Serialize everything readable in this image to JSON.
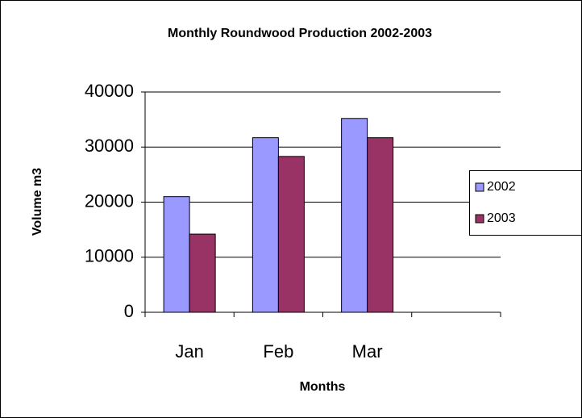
{
  "chart_data": {
    "type": "bar",
    "title": "Monthly Roundwood Production 2002-2003",
    "x_label": "Months",
    "y_label": "Volume m3",
    "categories": [
      "Jan",
      "Feb",
      "Mar",
      null
    ],
    "series": [
      {
        "name": "2002",
        "color": "#9999ff",
        "values": [
          21000,
          31700,
          35200,
          null
        ]
      },
      {
        "name": "2003",
        "color": "#993366",
        "values": [
          14200,
          28300,
          31700,
          null
        ]
      }
    ],
    "ylim": [
      0,
      40000
    ],
    "yticks": [
      0,
      10000,
      20000,
      30000,
      40000
    ],
    "grid": true,
    "legend": "right"
  }
}
